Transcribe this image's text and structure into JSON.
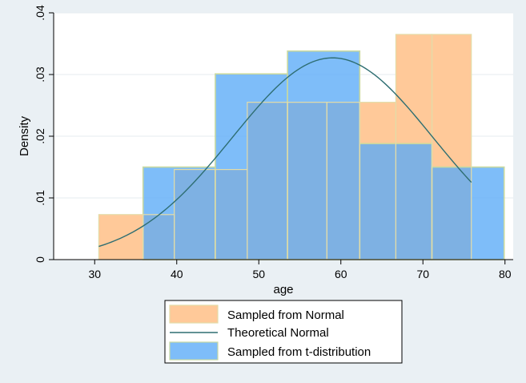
{
  "chart_data": {
    "type": "histogram",
    "xlabel": "age",
    "ylabel": "Density",
    "xlim": [
      25,
      81
    ],
    "ylim": [
      0,
      0.04
    ],
    "x_ticks": [
      {
        "value": 30,
        "label": "30"
      },
      {
        "value": 40,
        "label": "40"
      },
      {
        "value": 50,
        "label": "50"
      },
      {
        "value": 60,
        "label": "60"
      },
      {
        "value": 70,
        "label": "70"
      },
      {
        "value": 80,
        "label": "80"
      }
    ],
    "y_ticks": [
      {
        "value": 0,
        "label": "0"
      },
      {
        "value": 0.01,
        "label": ".01"
      },
      {
        "value": 0.02,
        "label": ".02"
      },
      {
        "value": 0.03,
        "label": ".03"
      },
      {
        "value": 0.04,
        "label": ".04"
      }
    ],
    "grid": true,
    "legend_position": "bottom",
    "series": [
      {
        "name": "Sampled from Normal",
        "kind": "bars",
        "color": "#ffc999",
        "bins": [
          {
            "x0": 30.5,
            "x1": 35.9,
            "y": 0.0073
          },
          {
            "x0": 35.9,
            "x1": 39.7,
            "y": 0.0073
          },
          {
            "x0": 39.7,
            "x1": 44.7,
            "y": 0.0146
          },
          {
            "x0": 44.7,
            "x1": 48.6,
            "y": 0.0146
          },
          {
            "x0": 48.6,
            "x1": 53.5,
            "y": 0.0255
          },
          {
            "x0": 53.5,
            "x1": 58.3,
            "y": 0.0255
          },
          {
            "x0": 58.3,
            "x1": 62.3,
            "y": 0.0255
          },
          {
            "x0": 62.3,
            "x1": 66.7,
            "y": 0.0255
          },
          {
            "x0": 66.7,
            "x1": 71.1,
            "y": 0.0365
          },
          {
            "x0": 71.1,
            "x1": 75.9,
            "y": 0.0365
          }
        ]
      },
      {
        "name": "Theoretical Normal",
        "kind": "line",
        "color": "#2e6e72",
        "mean": 59,
        "sd": 12.2,
        "x_range": [
          30.5,
          75.9
        ]
      },
      {
        "name": "Sampled from t-distribution",
        "kind": "bars",
        "color": "#5aabf7",
        "bins": [
          {
            "x0": 35.9,
            "x1": 44.7,
            "y": 0.015
          },
          {
            "x0": 44.7,
            "x1": 53.5,
            "y": 0.0301
          },
          {
            "x0": 53.5,
            "x1": 62.3,
            "y": 0.0338
          },
          {
            "x0": 62.3,
            "x1": 71.1,
            "y": 0.0188
          },
          {
            "x0": 71.1,
            "x1": 79.9,
            "y": 0.015
          }
        ]
      }
    ]
  }
}
